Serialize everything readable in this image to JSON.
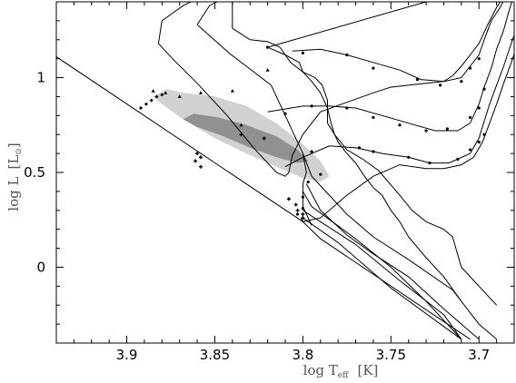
{
  "chart_data": {
    "type": "scatter",
    "title": "",
    "xlabel": "log T",
    "xlabel_sub": "eff",
    "xlabel_unit": "[K]",
    "ylabel": "log L",
    "ylabel_unit": "[L",
    "ylabel_sun": "⊙",
    "ylabel_close": "]",
    "xlim": [
      3.94,
      3.68
    ],
    "ylim": [
      -0.4,
      1.4
    ],
    "x_reversed": true,
    "grid": false,
    "xticks": [
      {
        "value": 3.9,
        "label": "3.9"
      },
      {
        "value": 3.85,
        "label": "3.85"
      },
      {
        "value": 3.8,
        "label": "3.8"
      },
      {
        "value": 3.75,
        "label": "3.75"
      },
      {
        "value": 3.7,
        "label": "3.7"
      }
    ],
    "yticks": [
      {
        "value": 0,
        "label": "0"
      },
      {
        "value": 0.5,
        "label": "0.5"
      },
      {
        "value": 1,
        "label": "1"
      }
    ],
    "zams": [
      [
        3.94,
        1.11
      ],
      [
        3.8,
        0.24
      ],
      [
        3.79,
        0.15
      ],
      [
        3.705,
        -0.38
      ]
    ],
    "tracks": [
      [
        [
          3.8,
          0.26
        ],
        [
          3.78,
          0.13
        ],
        [
          3.75,
          -0.11
        ],
        [
          3.71,
          -0.38
        ]
      ],
      [
        [
          3.8,
          0.3
        ],
        [
          3.77,
          0.12
        ],
        [
          3.745,
          -0.07
        ],
        [
          3.72,
          -0.25
        ],
        [
          3.71,
          -0.38
        ]
      ],
      [
        [
          3.8,
          0.4
        ],
        [
          3.795,
          0.32
        ],
        [
          3.77,
          0.15
        ],
        [
          3.75,
          0.0
        ],
        [
          3.73,
          -0.18
        ],
        [
          3.71,
          -0.38
        ]
      ],
      [
        [
          3.798,
          0.44
        ],
        [
          3.79,
          0.3
        ],
        [
          3.775,
          0.17
        ],
        [
          3.76,
          0.07
        ],
        [
          3.74,
          -0.05
        ],
        [
          3.72,
          -0.22
        ],
        [
          3.7,
          -0.38
        ]
      ],
      [
        [
          3.8,
          0.6
        ],
        [
          3.795,
          0.48
        ],
        [
          3.785,
          0.38
        ],
        [
          3.775,
          0.28
        ],
        [
          3.76,
          0.16
        ],
        [
          3.74,
          0.04
        ],
        [
          3.715,
          -0.12
        ],
        [
          3.7,
          -0.3
        ],
        [
          3.69,
          -0.38
        ]
      ],
      [
        [
          3.818,
          0.96
        ],
        [
          3.81,
          0.8
        ],
        [
          3.8,
          0.6
        ],
        [
          3.798,
          0.5
        ],
        [
          3.8,
          0.44
        ],
        [
          3.8,
          0.32
        ],
        [
          3.795,
          0.22
        ]
      ],
      [
        [
          3.86,
          1.28
        ],
        [
          3.853,
          1.38
        ],
        [
          3.84,
          1.44
        ]
      ],
      [
        [
          3.86,
          1.28
        ],
        [
          3.842,
          1.13
        ],
        [
          3.818,
          0.96
        ]
      ],
      [
        [
          3.813,
          1.16
        ],
        [
          3.82,
          1.19
        ],
        [
          3.83,
          1.2
        ],
        [
          3.84,
          1.26
        ],
        [
          3.84,
          1.44
        ]
      ],
      [
        [
          3.813,
          1.16
        ],
        [
          3.807,
          1.08
        ],
        [
          3.8,
          1.03
        ],
        [
          3.793,
          1.0
        ],
        [
          3.789,
          0.96
        ],
        [
          3.786,
          0.88
        ],
        [
          3.786,
          0.76
        ],
        [
          3.782,
          0.7
        ],
        [
          3.775,
          0.62
        ],
        [
          3.766,
          0.57
        ],
        [
          3.757,
          0.51
        ],
        [
          3.745,
          0.38
        ],
        [
          3.738,
          0.3
        ],
        [
          3.73,
          0.24
        ],
        [
          3.72,
          0.2
        ],
        [
          3.715,
          0.16
        ],
        [
          3.71,
          0.0
        ],
        [
          3.69,
          -0.2
        ]
      ],
      [
        [
          3.82,
          1.16
        ],
        [
          3.7,
          1.48
        ]
      ],
      [
        [
          3.82,
          1.16
        ],
        [
          3.81,
          1.12
        ],
        [
          3.802,
          1.08
        ],
        [
          3.8,
          1.03
        ],
        [
          3.795,
          0.98
        ],
        [
          3.79,
          0.92
        ],
        [
          3.786,
          0.84
        ],
        [
          3.784,
          0.76
        ],
        [
          3.782,
          0.7
        ],
        [
          3.78,
          0.66
        ],
        [
          3.775,
          0.6
        ],
        [
          3.77,
          0.55
        ],
        [
          3.765,
          0.48
        ],
        [
          3.76,
          0.42
        ],
        [
          3.755,
          0.38
        ],
        [
          3.75,
          0.3
        ],
        [
          3.745,
          0.24
        ],
        [
          3.74,
          0.16
        ],
        [
          3.73,
          0.05
        ],
        [
          3.72,
          -0.05
        ],
        [
          3.71,
          -0.18
        ]
      ],
      [
        [
          3.685,
          1.44
        ],
        [
          3.69,
          1.37
        ],
        [
          3.695,
          1.28
        ],
        [
          3.7,
          1.18
        ],
        [
          3.705,
          1.12
        ],
        [
          3.71,
          1.06
        ],
        [
          3.715,
          1.01
        ],
        [
          3.72,
          0.98
        ],
        [
          3.73,
          0.97
        ],
        [
          3.74,
          0.96
        ],
        [
          3.75,
          0.95
        ],
        [
          3.76,
          0.92
        ],
        [
          3.775,
          0.87
        ],
        [
          3.79,
          0.82
        ],
        [
          3.795,
          0.76
        ],
        [
          3.8,
          0.7
        ],
        [
          3.806,
          0.59
        ],
        [
          3.808,
          0.5
        ],
        [
          3.81,
          0.48
        ],
        [
          3.815,
          0.5
        ],
        [
          3.828,
          0.63
        ],
        [
          3.843,
          0.8
        ],
        [
          3.86,
          0.97
        ],
        [
          3.874,
          1.1
        ],
        [
          3.882,
          1.18
        ],
        [
          3.88,
          1.3
        ],
        [
          3.868,
          1.38
        ],
        [
          3.855,
          1.44
        ]
      ]
    ],
    "red_giant_tracks": [
      [
        [
          3.806,
          1.14
        ],
        [
          3.79,
          1.15
        ],
        [
          3.775,
          1.12
        ],
        [
          3.76,
          1.08
        ],
        [
          3.745,
          1.04
        ],
        [
          3.733,
          0.99
        ],
        [
          3.72,
          0.98
        ],
        [
          3.71,
          1.0
        ],
        [
          3.705,
          1.06
        ],
        [
          3.7,
          1.12
        ],
        [
          3.697,
          1.2
        ],
        [
          3.693,
          1.3
        ],
        [
          3.688,
          1.37
        ],
        [
          3.684,
          1.44
        ]
      ],
      [
        [
          3.82,
          0.82
        ],
        [
          3.8,
          0.85
        ],
        [
          3.785,
          0.85
        ],
        [
          3.77,
          0.84
        ],
        [
          3.755,
          0.8
        ],
        [
          3.74,
          0.76
        ],
        [
          3.725,
          0.72
        ],
        [
          3.712,
          0.72
        ],
        [
          3.705,
          0.76
        ],
        [
          3.7,
          0.86
        ],
        [
          3.697,
          0.95
        ],
        [
          3.693,
          1.05
        ],
        [
          3.69,
          1.15
        ],
        [
          3.686,
          1.25
        ],
        [
          3.683,
          1.35
        ],
        [
          3.68,
          1.44
        ]
      ],
      [
        [
          3.81,
          0.53
        ],
        [
          3.8,
          0.58
        ],
        [
          3.785,
          0.64
        ],
        [
          3.77,
          0.63
        ],
        [
          3.755,
          0.6
        ],
        [
          3.74,
          0.58
        ],
        [
          3.728,
          0.55
        ],
        [
          3.717,
          0.55
        ],
        [
          3.705,
          0.6
        ],
        [
          3.7,
          0.68
        ],
        [
          3.697,
          0.77
        ],
        [
          3.694,
          0.86
        ],
        [
          3.69,
          0.96
        ],
        [
          3.686,
          1.06
        ],
        [
          3.682,
          1.17
        ],
        [
          3.678,
          1.28
        ]
      ],
      [
        [
          3.801,
          0.26
        ],
        [
          3.8,
          0.24
        ],
        [
          3.79,
          0.26
        ],
        [
          3.775,
          0.38
        ],
        [
          3.76,
          0.48
        ],
        [
          3.745,
          0.54
        ],
        [
          3.73,
          0.52
        ],
        [
          3.72,
          0.52
        ],
        [
          3.71,
          0.54
        ],
        [
          3.703,
          0.58
        ],
        [
          3.698,
          0.66
        ],
        [
          3.694,
          0.76
        ],
        [
          3.69,
          0.86
        ],
        [
          3.686,
          0.97
        ],
        [
          3.682,
          1.07
        ],
        [
          3.678,
          1.18
        ]
      ]
    ],
    "track_markers": [
      [
        3.82,
        1.16
      ],
      [
        3.8,
        1.13
      ],
      [
        3.775,
        1.12
      ],
      [
        3.76,
        1.05
      ],
      [
        3.735,
        0.99
      ],
      [
        3.722,
        0.96
      ],
      [
        3.71,
        0.98
      ],
      [
        3.705,
        1.05
      ],
      [
        3.7,
        1.1
      ],
      [
        3.81,
        0.81
      ],
      [
        3.795,
        0.85
      ],
      [
        3.775,
        0.84
      ],
      [
        3.76,
        0.79
      ],
      [
        3.745,
        0.75
      ],
      [
        3.73,
        0.72
      ],
      [
        3.718,
        0.73
      ],
      [
        3.705,
        0.79
      ],
      [
        3.7,
        0.84
      ],
      [
        3.697,
        0.94
      ],
      [
        3.795,
        0.61
      ],
      [
        3.768,
        0.63
      ],
      [
        3.76,
        0.61
      ],
      [
        3.74,
        0.58
      ],
      [
        3.728,
        0.55
      ],
      [
        3.712,
        0.57
      ],
      [
        3.705,
        0.62
      ],
      [
        3.7,
        0.66
      ],
      [
        3.697,
        0.7
      ],
      [
        3.8,
        0.37
      ],
      [
        3.8,
        0.31
      ],
      [
        3.803,
        0.28
      ],
      [
        3.797,
        0.45
      ],
      [
        3.79,
        0.49
      ]
    ],
    "triangles": [
      [
        3.885,
        0.93
      ],
      [
        3.878,
        0.92
      ],
      [
        3.87,
        0.9
      ],
      [
        3.858,
        0.92
      ],
      [
        3.84,
        0.93
      ],
      [
        3.82,
        1.04
      ],
      [
        3.835,
        0.75
      ]
    ],
    "diamonds": [
      [
        3.892,
        0.84
      ],
      [
        3.889,
        0.86
      ],
      [
        3.886,
        0.88
      ],
      [
        3.883,
        0.9
      ],
      [
        3.88,
        0.91
      ]
    ],
    "pluses": [
      [
        3.858,
        0.53
      ],
      [
        3.861,
        0.56
      ],
      [
        3.858,
        0.58
      ],
      [
        3.86,
        0.6
      ],
      [
        3.808,
        0.36
      ],
      [
        3.804,
        0.33
      ],
      [
        3.803,
        0.3
      ],
      [
        3.8,
        0.28
      ],
      [
        3.8,
        0.26
      ],
      [
        3.822,
        0.68
      ],
      [
        3.835,
        0.7
      ]
    ],
    "observed_region_outer": [
      [
        3.877,
        0.94
      ],
      [
        3.868,
        0.92
      ],
      [
        3.85,
        0.9
      ],
      [
        3.832,
        0.85
      ],
      [
        3.815,
        0.76
      ],
      [
        3.8,
        0.65
      ],
      [
        3.79,
        0.56
      ],
      [
        3.785,
        0.48
      ],
      [
        3.79,
        0.45
      ],
      [
        3.8,
        0.47
      ],
      [
        3.815,
        0.53
      ],
      [
        3.832,
        0.6
      ],
      [
        3.85,
        0.68
      ],
      [
        3.868,
        0.78
      ],
      [
        3.88,
        0.86
      ],
      [
        3.885,
        0.9
      ]
    ],
    "observed_region_inner": [
      [
        3.862,
        0.81
      ],
      [
        3.848,
        0.79
      ],
      [
        3.832,
        0.75
      ],
      [
        3.815,
        0.69
      ],
      [
        3.803,
        0.62
      ],
      [
        3.797,
        0.56
      ],
      [
        3.803,
        0.55
      ],
      [
        3.815,
        0.58
      ],
      [
        3.83,
        0.63
      ],
      [
        3.845,
        0.69
      ],
      [
        3.86,
        0.74
      ],
      [
        3.868,
        0.78
      ]
    ],
    "colors": {
      "line": "#000000",
      "outer_region": "#c9c9c9",
      "inner_region": "#8a8a8a",
      "axis_label": "#555555"
    }
  }
}
